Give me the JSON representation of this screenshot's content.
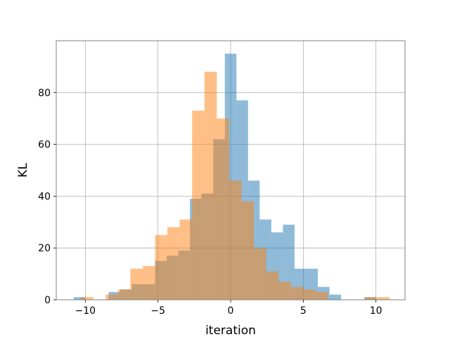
{
  "chart_data": {
    "type": "bar",
    "subtype": "overlaid-histogram",
    "title": "",
    "xlabel": "iteration",
    "ylabel": "KL",
    "xlim": [
      -12,
      12
    ],
    "ylim": [
      0,
      100
    ],
    "grid": true,
    "x_ticks": [
      -10,
      -5,
      0,
      5,
      10
    ],
    "x_tick_labels": [
      "−10",
      "−5",
      "0",
      "5",
      "10"
    ],
    "y_ticks": [
      0,
      20,
      40,
      60,
      80
    ],
    "y_tick_labels": [
      "0",
      "20",
      "40",
      "60",
      "80"
    ],
    "series": [
      {
        "color": "#1f77b4",
        "opacity": 0.5,
        "bin_edges": [
          -10.8,
          -10.0,
          -9.2,
          -8.4,
          -7.6,
          -6.8,
          -6.0,
          -5.2,
          -4.4,
          -3.6,
          -2.8,
          -2.0,
          -1.2,
          -0.4,
          0.4,
          1.2,
          2.0,
          2.8,
          3.6,
          4.4,
          5.2,
          6.0,
          6.8,
          7.6,
          8.4,
          9.2,
          10.0
        ],
        "counts": [
          1,
          0,
          0,
          3,
          4,
          6,
          6,
          15,
          17,
          19,
          39,
          41,
          62,
          95,
          77,
          46,
          31,
          26,
          29,
          12,
          12,
          5,
          2,
          0,
          0,
          1
        ]
      },
      {
        "color": "#ff7f0e",
        "opacity": 0.5,
        "bin_edges": [
          -10.3,
          -9.45,
          -8.6,
          -7.75,
          -6.9,
          -6.05,
          -5.2,
          -4.35,
          -3.5,
          -2.65,
          -1.8,
          -0.95,
          -0.1,
          0.75,
          1.6,
          2.45,
          3.3,
          4.15,
          5.0,
          5.85,
          6.7,
          7.55,
          8.4,
          9.25,
          10.1,
          10.95
        ],
        "counts": [
          1,
          0,
          2,
          4,
          12,
          13,
          25,
          28,
          31,
          73,
          88,
          70,
          46,
          38,
          20,
          11,
          7,
          5,
          4,
          3,
          0,
          0,
          0,
          1,
          1
        ]
      }
    ]
  }
}
